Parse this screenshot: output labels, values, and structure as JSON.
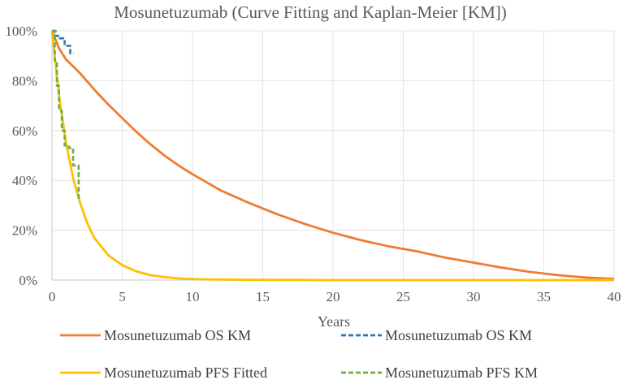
{
  "chart_data": {
    "type": "line",
    "title": "Mosunetuzumab (Curve Fitting and Kaplan-Meier [KM])",
    "xlabel": "Years",
    "ylabel": "",
    "xlim": [
      0,
      40
    ],
    "ylim": [
      0,
      1
    ],
    "x_ticks": [
      0,
      5,
      10,
      15,
      20,
      25,
      30,
      35,
      40
    ],
    "y_ticks": [
      0,
      0.2,
      0.4,
      0.6,
      0.8,
      1.0
    ],
    "x_tick_labels": [
      "0",
      "5",
      "10",
      "15",
      "20",
      "25",
      "30",
      "35",
      "40"
    ],
    "y_tick_labels": [
      "0%",
      "20%",
      "40%",
      "60%",
      "80%",
      "100%"
    ],
    "grid": true,
    "legend_position": "bottom",
    "series": [
      {
        "name": "Mosunetuzumab OS KM",
        "style": "solid",
        "color": "#ED7D31",
        "x": [
          0,
          0.5,
          1,
          2,
          3,
          4,
          5,
          6,
          7,
          8,
          9,
          10,
          12,
          14,
          16,
          18,
          20,
          22,
          24,
          26,
          28,
          30,
          32,
          34,
          36,
          38,
          40
        ],
        "y": [
          1.0,
          0.93,
          0.885,
          0.83,
          0.765,
          0.705,
          0.65,
          0.595,
          0.545,
          0.5,
          0.46,
          0.425,
          0.36,
          0.31,
          0.265,
          0.225,
          0.19,
          0.16,
          0.135,
          0.115,
          0.09,
          0.07,
          0.05,
          0.033,
          0.02,
          0.01,
          0.005
        ]
      },
      {
        "name": "Mosunetuzumab OS KM",
        "style": "dashed",
        "color": "#2E75B6",
        "x": [
          0,
          0.25,
          0.25,
          0.55,
          0.55,
          0.9,
          0.9,
          1.3,
          1.3,
          1.55
        ],
        "y": [
          1.0,
          1.0,
          0.98,
          0.98,
          0.97,
          0.97,
          0.94,
          0.94,
          0.91,
          0.91
        ]
      },
      {
        "name": "Mosunetuzumab PFS Fitted",
        "style": "solid",
        "color": "#FFC000",
        "x": [
          0,
          0.5,
          1,
          1.5,
          2,
          2.5,
          3,
          4,
          5,
          6,
          7,
          8,
          9,
          10,
          12,
          15,
          20,
          40
        ],
        "y": [
          1.0,
          0.74,
          0.55,
          0.41,
          0.31,
          0.23,
          0.17,
          0.1,
          0.06,
          0.035,
          0.02,
          0.012,
          0.007,
          0.004,
          0.002,
          0.001,
          0.0,
          0.0
        ]
      },
      {
        "name": "Mosunetuzumab PFS KM",
        "style": "dashed",
        "color": "#70AD47",
        "x": [
          0,
          0.2,
          0.2,
          0.35,
          0.35,
          0.5,
          0.5,
          0.7,
          0.7,
          0.9,
          0.9,
          1.2,
          1.2,
          1.5,
          1.5,
          1.9,
          1.9,
          2.0
        ],
        "y": [
          1.0,
          1.0,
          0.88,
          0.88,
          0.78,
          0.78,
          0.68,
          0.68,
          0.6,
          0.6,
          0.54,
          0.54,
          0.53,
          0.53,
          0.46,
          0.46,
          0.33,
          0.33
        ]
      }
    ]
  }
}
